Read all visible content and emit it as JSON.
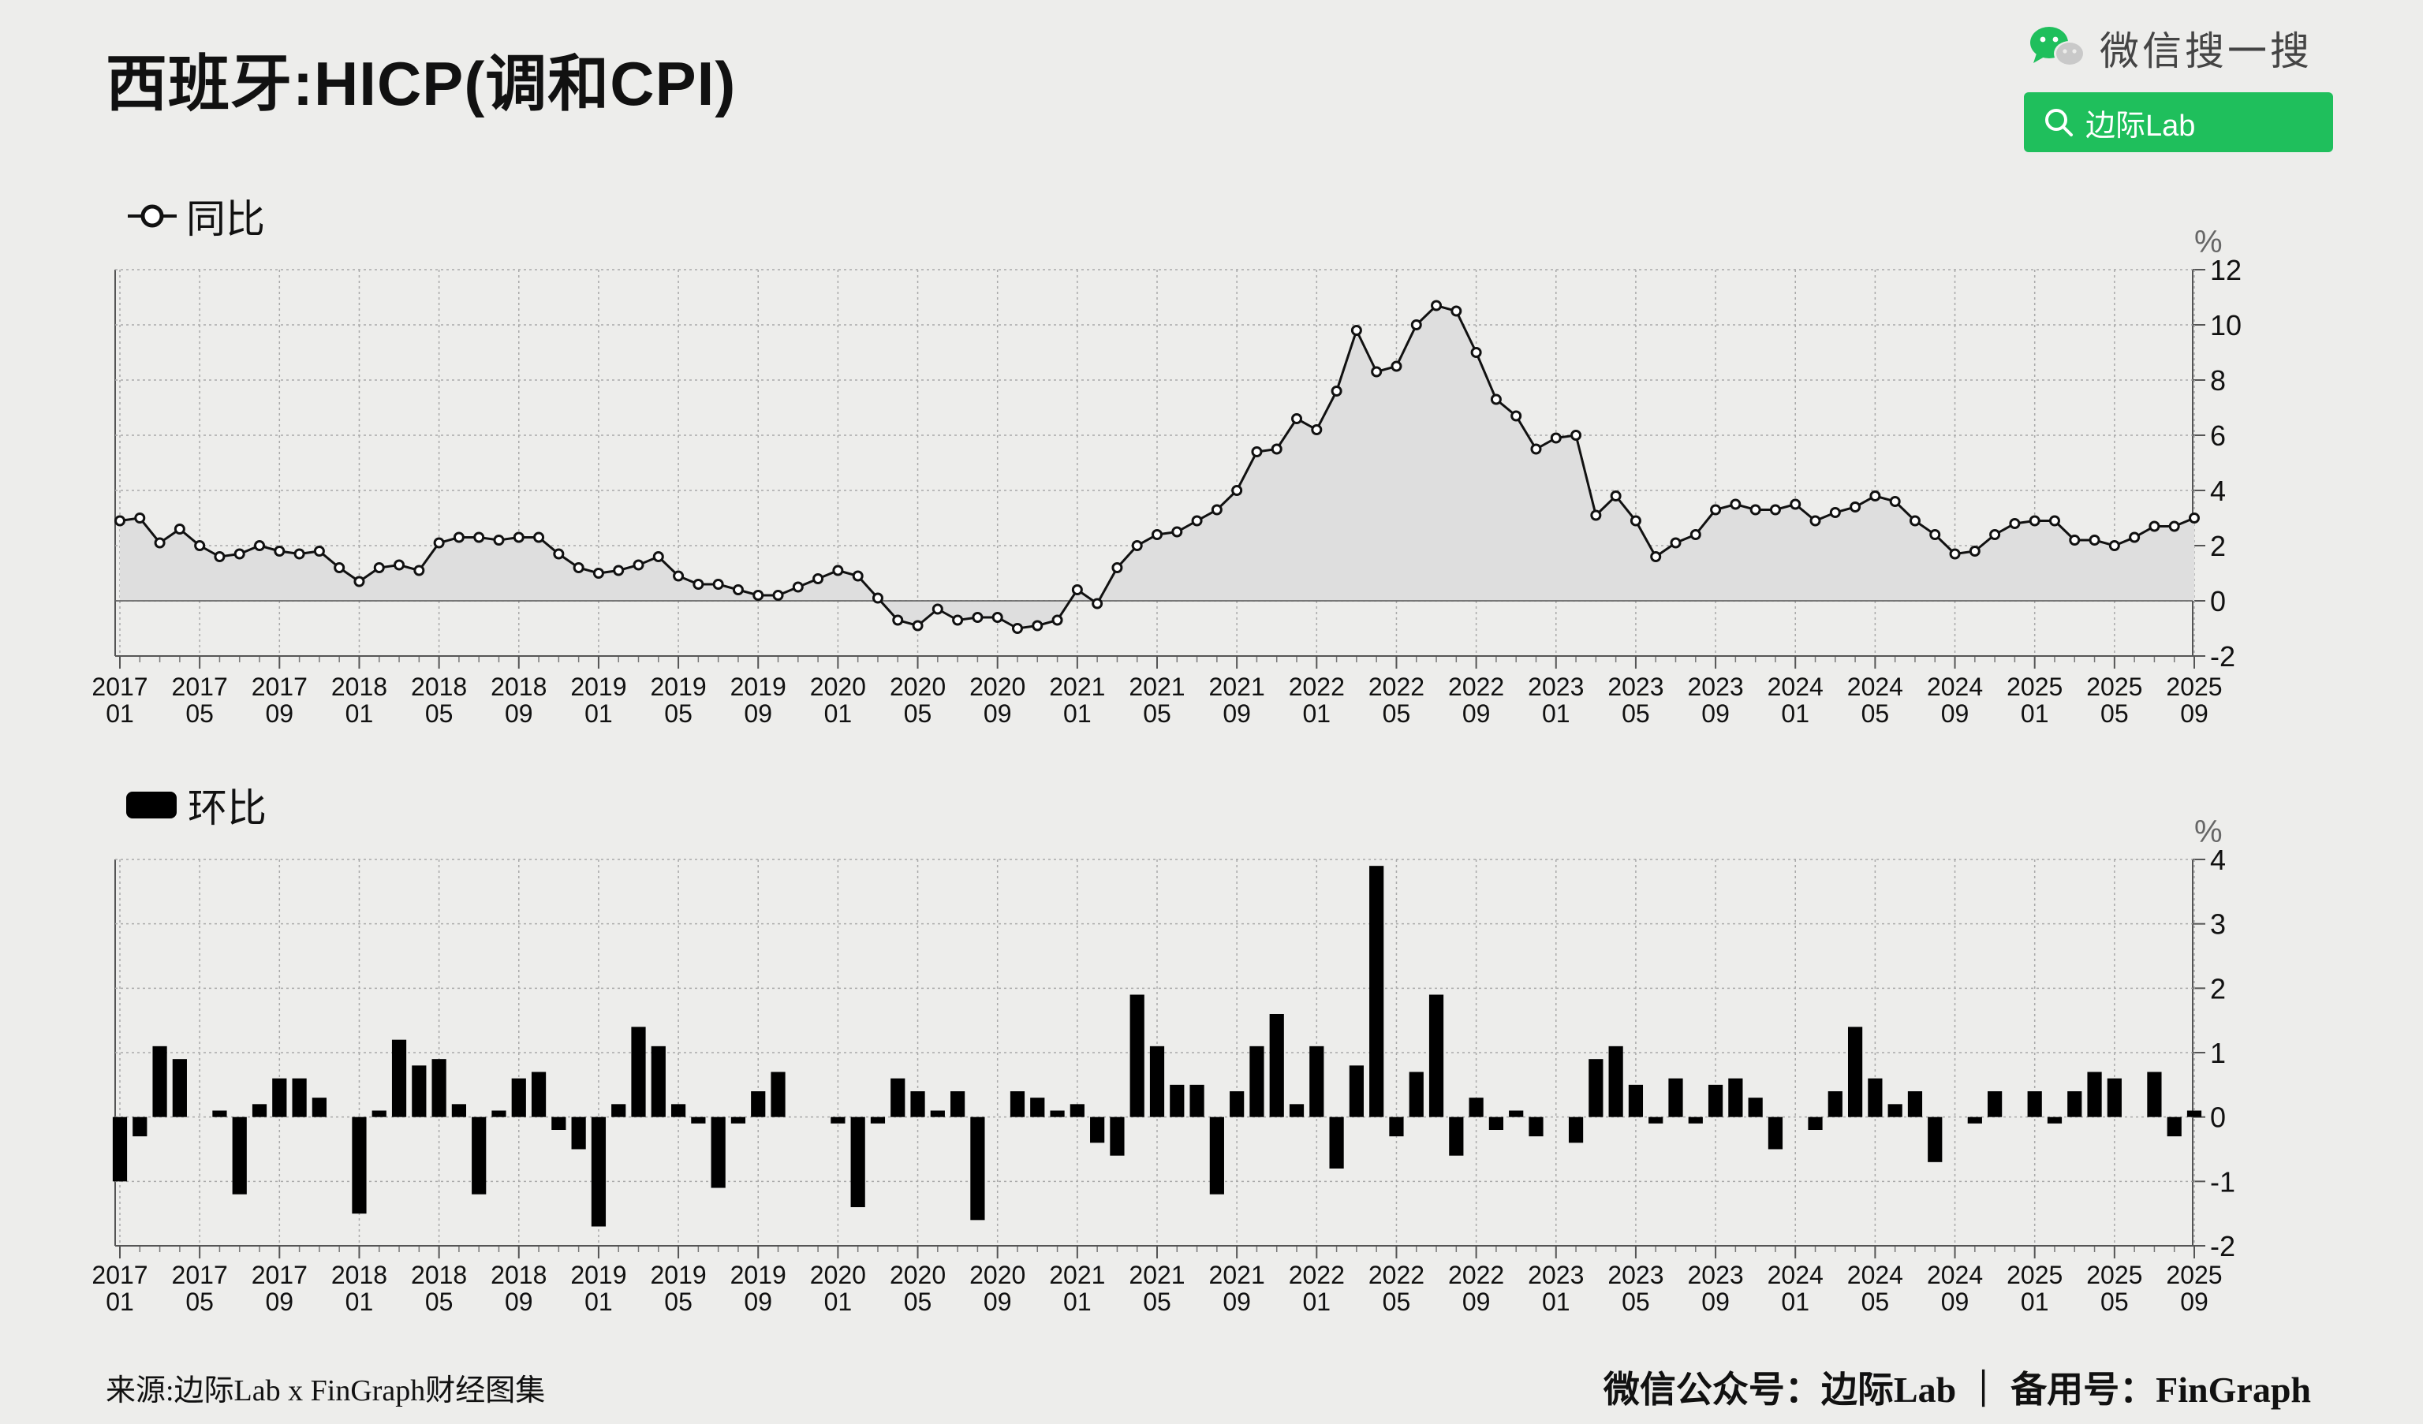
{
  "title": "西班牙:HICP(调和CPI)",
  "wechat": {
    "label": "微信搜一搜",
    "search_label": "边际Lab"
  },
  "footer": {
    "source": "来源:边际Lab x FinGraph财经图集",
    "account": "微信公众号：边际Lab ｜ 备用号：FinGraph"
  },
  "colors": {
    "line": "#111111",
    "area": "#dedede",
    "bar": "#000000",
    "accent": "#1fbf5c"
  },
  "x_tick_labels": [
    [
      "2017",
      "01"
    ],
    [
      "2017",
      "05"
    ],
    [
      "2017",
      "09"
    ],
    [
      "2018",
      "01"
    ],
    [
      "2018",
      "05"
    ],
    [
      "2018",
      "09"
    ],
    [
      "2019",
      "01"
    ],
    [
      "2019",
      "05"
    ],
    [
      "2019",
      "09"
    ],
    [
      "2020",
      "01"
    ],
    [
      "2020",
      "05"
    ],
    [
      "2020",
      "09"
    ],
    [
      "2021",
      "01"
    ],
    [
      "2021",
      "05"
    ],
    [
      "2021",
      "09"
    ],
    [
      "2022",
      "01"
    ],
    [
      "2022",
      "05"
    ],
    [
      "2022",
      "09"
    ],
    [
      "2023",
      "01"
    ],
    [
      "2023",
      "05"
    ],
    [
      "2023",
      "09"
    ],
    [
      "2024",
      "01"
    ],
    [
      "2024",
      "05"
    ],
    [
      "2024",
      "09"
    ],
    [
      "2025",
      "01"
    ],
    [
      "2025",
      "05"
    ],
    [
      "2025",
      "09"
    ]
  ],
  "chart_data": [
    {
      "type": "line",
      "legend": "同比",
      "unit_label": "%",
      "x_start": "2017-01",
      "x_end": "2025-09",
      "ylim": [
        -2,
        12
      ],
      "yticks": [
        -2,
        0,
        2,
        4,
        6,
        8,
        10,
        12
      ],
      "grid": true,
      "values": [
        2.9,
        3.0,
        2.1,
        2.6,
        2.0,
        1.6,
        1.7,
        2.0,
        1.8,
        1.7,
        1.8,
        1.2,
        0.7,
        1.2,
        1.3,
        1.1,
        2.1,
        2.3,
        2.3,
        2.2,
        2.3,
        2.3,
        1.7,
        1.2,
        1.0,
        1.1,
        1.3,
        1.6,
        0.9,
        0.6,
        0.6,
        0.4,
        0.2,
        0.2,
        0.5,
        0.8,
        1.1,
        0.9,
        0.1,
        -0.7,
        -0.9,
        -0.3,
        -0.7,
        -0.6,
        -0.6,
        -1.0,
        -0.9,
        -0.7,
        0.4,
        -0.1,
        1.2,
        2.0,
        2.4,
        2.5,
        2.9,
        3.3,
        4.0,
        5.4,
        5.5,
        6.6,
        6.2,
        7.6,
        9.8,
        8.3,
        8.5,
        10.0,
        10.7,
        10.5,
        9.0,
        7.3,
        6.7,
        5.5,
        5.9,
        6.0,
        3.1,
        3.8,
        2.9,
        1.6,
        2.1,
        2.4,
        3.3,
        3.5,
        3.3,
        3.3,
        3.5,
        2.9,
        3.2,
        3.4,
        3.8,
        3.6,
        2.9,
        2.4,
        1.7,
        1.8,
        2.4,
        2.8,
        2.9,
        2.9,
        2.2,
        2.2,
        2.0,
        2.3,
        2.7,
        2.7,
        3.0
      ]
    },
    {
      "type": "bar",
      "legend": "环比",
      "unit_label": "%",
      "x_start": "2017-01",
      "x_end": "2025-09",
      "ylim": [
        -2,
        4
      ],
      "yticks": [
        -2,
        -1,
        0,
        1,
        2,
        3,
        4
      ],
      "grid": true,
      "values": [
        -1.0,
        -0.3,
        1.1,
        0.9,
        0.0,
        0.1,
        -1.2,
        0.2,
        0.6,
        0.6,
        0.3,
        0.0,
        -1.5,
        0.1,
        1.2,
        0.8,
        0.9,
        0.2,
        -1.2,
        0.1,
        0.6,
        0.7,
        -0.2,
        -0.5,
        -1.7,
        0.2,
        1.4,
        1.1,
        0.2,
        -0.1,
        -1.1,
        -0.1,
        0.4,
        0.7,
        0.0,
        0.0,
        -0.1,
        -1.4,
        -0.1,
        0.6,
        0.4,
        0.1,
        0.4,
        -1.6,
        0.0,
        0.4,
        0.3,
        0.1,
        0.2,
        -0.4,
        -0.6,
        1.9,
        1.1,
        0.5,
        0.5,
        -1.2,
        0.4,
        1.1,
        1.6,
        0.2,
        1.1,
        -0.8,
        0.8,
        3.9,
        -0.3,
        0.7,
        1.9,
        -0.6,
        0.3,
        -0.2,
        0.1,
        -0.3,
        0.0,
        -0.4,
        0.9,
        1.1,
        0.5,
        -0.1,
        0.6,
        -0.1,
        0.5,
        0.6,
        0.3,
        -0.5,
        0.0,
        -0.2,
        0.4,
        1.4,
        0.6,
        0.2,
        0.4,
        -0.7,
        0.0,
        -0.1,
        0.4,
        0.0,
        0.4,
        -0.1,
        0.4,
        0.7,
        0.6,
        0.0,
        0.7,
        -0.3,
        0.1
      ]
    }
  ]
}
